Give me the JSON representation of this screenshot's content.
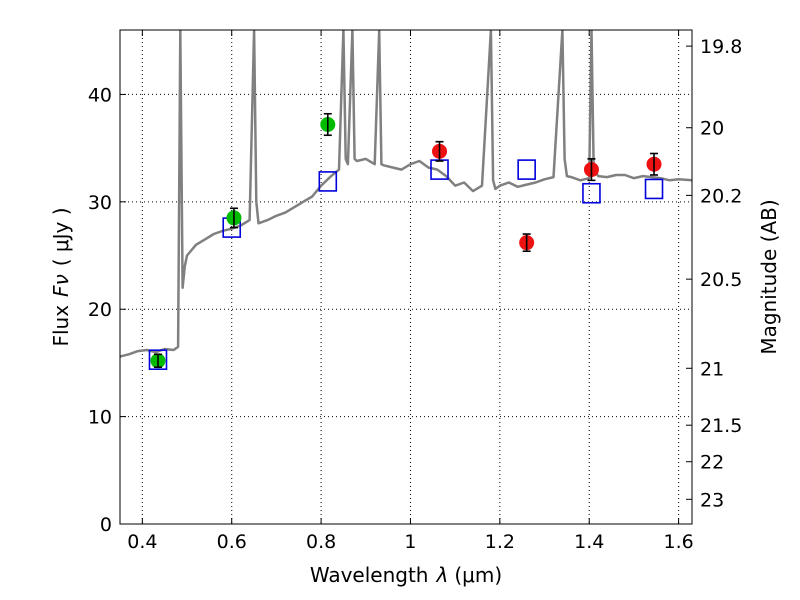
{
  "chart_data": {
    "type": "scatter",
    "title": "",
    "xlabel_text": "Wavelength",
    "xlabel_symbol": "λ",
    "xlabel_unit": "(μm)",
    "ylabel_text": "Flux",
    "ylabel_symbol": "Fν",
    "ylabel_unit": "( μJy )",
    "y2label": "Magnitude (AB)",
    "xlim": [
      0.35,
      1.63
    ],
    "ylim": [
      0,
      46
    ],
    "grid": true,
    "colors": {
      "spectrum": "#808080",
      "photometry_green": "#00bb00",
      "photometry_red": "#ee1111",
      "model_squares": "#0000dd",
      "errorbar": "#000000"
    },
    "x_ticks": [
      {
        "value": 0.4,
        "label": "0.4"
      },
      {
        "value": 0.6,
        "label": "0.6"
      },
      {
        "value": 0.8,
        "label": "0.8"
      },
      {
        "value": 1.0,
        "label": "1"
      },
      {
        "value": 1.2,
        "label": "1.2"
      },
      {
        "value": 1.4,
        "label": "1.4"
      },
      {
        "value": 1.6,
        "label": "1.6"
      }
    ],
    "y_ticks": [
      {
        "value": 0,
        "label": "0"
      },
      {
        "value": 10,
        "label": "10"
      },
      {
        "value": 20,
        "label": "20"
      },
      {
        "value": 30,
        "label": "30"
      },
      {
        "value": 40,
        "label": "40"
      }
    ],
    "y2_ticks": [
      {
        "flux": 44.5,
        "label": "19.8"
      },
      {
        "flux": 36.9,
        "label": "20"
      },
      {
        "flux": 30.6,
        "label": "20.2"
      },
      {
        "flux": 22.8,
        "label": "20.5"
      },
      {
        "flux": 14.5,
        "label": "21"
      },
      {
        "flux": 9.2,
        "label": "21.5"
      },
      {
        "flux": 5.8,
        "label": "22"
      },
      {
        "flux": 2.3,
        "label": "23"
      }
    ],
    "series": [
      {
        "kind": "spectrum",
        "x": [
          0.35,
          0.37,
          0.39,
          0.41,
          0.43,
          0.45,
          0.47,
          0.48,
          0.485,
          0.49,
          0.495,
          0.5,
          0.52,
          0.54,
          0.56,
          0.58,
          0.6,
          0.62,
          0.64,
          0.65,
          0.655,
          0.66,
          0.68,
          0.7,
          0.72,
          0.74,
          0.76,
          0.78,
          0.8,
          0.82,
          0.84,
          0.85,
          0.855,
          0.86,
          0.87,
          0.875,
          0.88,
          0.9,
          0.92,
          0.93,
          0.935,
          0.94,
          0.96,
          0.98,
          1.0,
          1.02,
          1.04,
          1.06,
          1.08,
          1.1,
          1.12,
          1.14,
          1.16,
          1.18,
          1.185,
          1.19,
          1.2,
          1.22,
          1.24,
          1.26,
          1.28,
          1.3,
          1.32,
          1.34,
          1.345,
          1.35,
          1.36,
          1.38,
          1.4,
          1.405,
          1.41,
          1.42,
          1.44,
          1.46,
          1.48,
          1.5,
          1.52,
          1.54,
          1.56,
          1.58,
          1.6,
          1.63
        ],
        "y": [
          15.6,
          15.8,
          16.1,
          16.2,
          16.0,
          16.3,
          16.2,
          16.5,
          46,
          22,
          24,
          25.0,
          26.0,
          26.5,
          27.0,
          27.3,
          27.5,
          27.8,
          28.3,
          46,
          30,
          28.0,
          28.3,
          28.7,
          29.0,
          29.5,
          30.0,
          30.5,
          31.5,
          32.3,
          33.0,
          46,
          34,
          33.5,
          46,
          34,
          33.8,
          34.0,
          33.5,
          46,
          33.5,
          33.4,
          33.2,
          33.0,
          33.5,
          33.8,
          33.2,
          33.0,
          32.4,
          31.5,
          31.8,
          31.0,
          31.5,
          46,
          32,
          31.2,
          31.5,
          31.8,
          31.4,
          31.6,
          31.8,
          32.1,
          32.3,
          46,
          34,
          32.4,
          32.3,
          32.0,
          32.2,
          46,
          33,
          32.4,
          32.3,
          32.5,
          32.5,
          32.2,
          32.4,
          32.3,
          32.2,
          32.0,
          32.1,
          32.0
        ]
      },
      {
        "kind": "photometry",
        "color": "green",
        "x": [
          0.435,
          0.605,
          0.815
        ],
        "y": [
          15.2,
          28.5,
          37.2
        ],
        "err": [
          0.6,
          0.9,
          1.0
        ]
      },
      {
        "kind": "photometry",
        "color": "red",
        "x": [
          1.065,
          1.26,
          1.405,
          1.545
        ],
        "y": [
          34.7,
          26.2,
          33.0,
          33.5
        ],
        "err": [
          0.9,
          0.8,
          1.0,
          1.0
        ]
      },
      {
        "kind": "model",
        "marker": "square",
        "x": [
          0.435,
          0.6,
          0.815,
          1.065,
          1.26,
          1.405,
          1.545
        ],
        "y": [
          15.3,
          27.6,
          31.9,
          33.0,
          33.0,
          30.8,
          31.2
        ]
      }
    ]
  }
}
